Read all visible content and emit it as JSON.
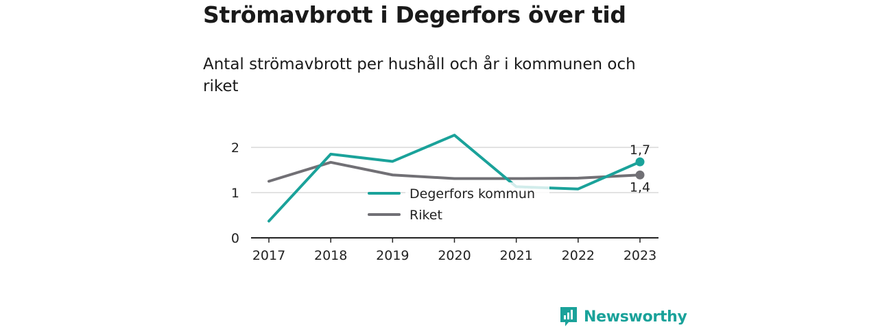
{
  "title": "Strömavbrott i Degerfors över tid",
  "subtitle": "Antal strömavbrott per hushåll och år i kommunen och riket",
  "brand": {
    "name": "Newsworthy",
    "icon": "bar-chart-speech-bubble-icon"
  },
  "colors": {
    "degerfors": "#1aa29a",
    "riket": "#717075",
    "grid": "#d9d9d9",
    "axis": "#222222",
    "brand": "#1aa29a"
  },
  "chart_data": {
    "type": "line",
    "title": "",
    "xlabel": "",
    "ylabel": "",
    "x": [
      "2017",
      "2018",
      "2019",
      "2020",
      "2021",
      "2022",
      "2023"
    ],
    "ylim": [
      0,
      2.4
    ],
    "yticks": [
      0,
      1,
      2
    ],
    "ytick_labels": [
      "0",
      "1",
      "2"
    ],
    "grid": true,
    "legend_position": "center",
    "series": [
      {
        "name": "Degerfors kommun",
        "color": "#1aa29a",
        "values": [
          0.37,
          1.85,
          1.69,
          2.27,
          1.13,
          1.08,
          1.68
        ],
        "end_label": "1,7"
      },
      {
        "name": "Riket",
        "color": "#717075",
        "values": [
          1.25,
          1.67,
          1.39,
          1.31,
          1.31,
          1.32,
          1.39
        ],
        "end_label": "1,4"
      }
    ]
  }
}
